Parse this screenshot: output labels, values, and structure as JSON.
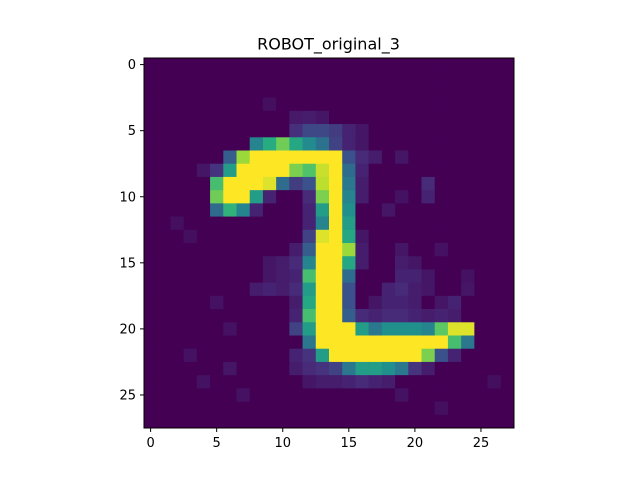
{
  "chart_data": {
    "type": "heatmap",
    "title": "ROBOT_original_3",
    "xlabel": "",
    "ylabel": "",
    "colormap": "viridis",
    "rows": 28,
    "cols": 28,
    "xlim": [
      -0.5,
      27.5
    ],
    "ylim": [
      27.5,
      -0.5
    ],
    "xticks": [
      0,
      5,
      10,
      15,
      20,
      25
    ],
    "yticks": [
      0,
      5,
      10,
      15,
      20,
      25
    ],
    "value_range": [
      0,
      1
    ],
    "cells": [
      {
        "r": 4,
        "c": 11,
        "v": 0.07
      },
      {
        "r": 4,
        "c": 12,
        "v": 0.08
      },
      {
        "r": 4,
        "c": 13,
        "v": 0.06
      },
      {
        "r": 5,
        "c": 11,
        "v": 0.14
      },
      {
        "r": 5,
        "c": 12,
        "v": 0.22
      },
      {
        "r": 5,
        "c": 13,
        "v": 0.22
      },
      {
        "r": 5,
        "c": 14,
        "v": 0.18
      },
      {
        "r": 5,
        "c": 15,
        "v": 0.1
      },
      {
        "r": 5,
        "c": 16,
        "v": 0.06
      },
      {
        "r": 6,
        "c": 8,
        "v": 0.45
      },
      {
        "r": 6,
        "c": 9,
        "v": 0.62
      },
      {
        "r": 6,
        "c": 10,
        "v": 0.78
      },
      {
        "r": 6,
        "c": 11,
        "v": 0.6
      },
      {
        "r": 6,
        "c": 12,
        "v": 0.48
      },
      {
        "r": 6,
        "c": 13,
        "v": 0.38
      },
      {
        "r": 6,
        "c": 14,
        "v": 0.2
      },
      {
        "r": 6,
        "c": 15,
        "v": 0.1
      },
      {
        "r": 6,
        "c": 16,
        "v": 0.06
      },
      {
        "r": 7,
        "c": 6,
        "v": 0.3
      },
      {
        "r": 7,
        "c": 7,
        "v": 0.85
      },
      {
        "r": 7,
        "c": 8,
        "v": 1
      },
      {
        "r": 7,
        "c": 9,
        "v": 1
      },
      {
        "r": 7,
        "c": 10,
        "v": 1
      },
      {
        "r": 7,
        "c": 11,
        "v": 1
      },
      {
        "r": 7,
        "c": 12,
        "v": 1
      },
      {
        "r": 7,
        "c": 13,
        "v": 1
      },
      {
        "r": 7,
        "c": 14,
        "v": 1
      },
      {
        "r": 7,
        "c": 15,
        "v": 0.25
      },
      {
        "r": 7,
        "c": 16,
        "v": 0.12
      },
      {
        "r": 7,
        "c": 17,
        "v": 0.08
      },
      {
        "r": 8,
        "c": 4,
        "v": 0.06
      },
      {
        "r": 8,
        "c": 5,
        "v": 0.15
      },
      {
        "r": 8,
        "c": 6,
        "v": 0.55
      },
      {
        "r": 8,
        "c": 7,
        "v": 1
      },
      {
        "r": 8,
        "c": 8,
        "v": 1
      },
      {
        "r": 8,
        "c": 9,
        "v": 1
      },
      {
        "r": 8,
        "c": 10,
        "v": 1
      },
      {
        "r": 8,
        "c": 11,
        "v": 0.8
      },
      {
        "r": 8,
        "c": 12,
        "v": 0.72
      },
      {
        "r": 8,
        "c": 13,
        "v": 0.92
      },
      {
        "r": 8,
        "c": 14,
        "v": 1
      },
      {
        "r": 8,
        "c": 15,
        "v": 0.35
      },
      {
        "r": 8,
        "c": 16,
        "v": 0.1
      },
      {
        "r": 9,
        "c": 5,
        "v": 0.7
      },
      {
        "r": 9,
        "c": 6,
        "v": 1
      },
      {
        "r": 9,
        "c": 7,
        "v": 1
      },
      {
        "r": 9,
        "c": 8,
        "v": 1
      },
      {
        "r": 9,
        "c": 9,
        "v": 0.95
      },
      {
        "r": 9,
        "c": 10,
        "v": 0.35
      },
      {
        "r": 9,
        "c": 11,
        "v": 0.18
      },
      {
        "r": 9,
        "c": 12,
        "v": 0.25
      },
      {
        "r": 9,
        "c": 13,
        "v": 0.9
      },
      {
        "r": 9,
        "c": 14,
        "v": 1
      },
      {
        "r": 9,
        "c": 15,
        "v": 0.4
      },
      {
        "r": 9,
        "c": 16,
        "v": 0.08
      },
      {
        "r": 9,
        "c": 21,
        "v": 0.12
      },
      {
        "r": 10,
        "c": 5,
        "v": 0.78
      },
      {
        "r": 10,
        "c": 6,
        "v": 1
      },
      {
        "r": 10,
        "c": 7,
        "v": 1
      },
      {
        "r": 10,
        "c": 8,
        "v": 0.55
      },
      {
        "r": 10,
        "c": 9,
        "v": 0.1
      },
      {
        "r": 10,
        "c": 12,
        "v": 0.12
      },
      {
        "r": 10,
        "c": 13,
        "v": 0.8
      },
      {
        "r": 10,
        "c": 14,
        "v": 1
      },
      {
        "r": 10,
        "c": 15,
        "v": 0.45
      },
      {
        "r": 10,
        "c": 16,
        "v": 0.08
      },
      {
        "r": 10,
        "c": 21,
        "v": 0.1
      },
      {
        "r": 11,
        "c": 5,
        "v": 0.35
      },
      {
        "r": 11,
        "c": 6,
        "v": 0.65
      },
      {
        "r": 11,
        "c": 7,
        "v": 0.45
      },
      {
        "r": 11,
        "c": 8,
        "v": 0.1
      },
      {
        "r": 11,
        "c": 12,
        "v": 0.1
      },
      {
        "r": 11,
        "c": 13,
        "v": 0.55
      },
      {
        "r": 11,
        "c": 14,
        "v": 1
      },
      {
        "r": 11,
        "c": 15,
        "v": 0.5
      },
      {
        "r": 11,
        "c": 18,
        "v": 0.06
      },
      {
        "r": 12,
        "c": 12,
        "v": 0.1
      },
      {
        "r": 12,
        "c": 13,
        "v": 0.45
      },
      {
        "r": 12,
        "c": 14,
        "v": 1
      },
      {
        "r": 12,
        "c": 15,
        "v": 0.55
      },
      {
        "r": 13,
        "c": 12,
        "v": 0.2
      },
      {
        "r": 13,
        "c": 13,
        "v": 0.95
      },
      {
        "r": 13,
        "c": 14,
        "v": 1
      },
      {
        "r": 13,
        "c": 15,
        "v": 0.6
      },
      {
        "r": 13,
        "c": 16,
        "v": 0.06
      },
      {
        "r": 14,
        "c": 11,
        "v": 0.08
      },
      {
        "r": 14,
        "c": 12,
        "v": 0.3
      },
      {
        "r": 14,
        "c": 13,
        "v": 1
      },
      {
        "r": 14,
        "c": 14,
        "v": 1
      },
      {
        "r": 14,
        "c": 15,
        "v": 0.85
      },
      {
        "r": 14,
        "c": 16,
        "v": 0.08
      },
      {
        "r": 14,
        "c": 19,
        "v": 0.06
      },
      {
        "r": 15,
        "c": 9,
        "v": 0.06
      },
      {
        "r": 15,
        "c": 10,
        "v": 0.08
      },
      {
        "r": 15,
        "c": 11,
        "v": 0.12
      },
      {
        "r": 15,
        "c": 12,
        "v": 0.45
      },
      {
        "r": 15,
        "c": 13,
        "v": 1
      },
      {
        "r": 15,
        "c": 14,
        "v": 1
      },
      {
        "r": 15,
        "c": 15,
        "v": 0.6
      },
      {
        "r": 15,
        "c": 16,
        "v": 0.08
      },
      {
        "r": 15,
        "c": 19,
        "v": 0.08
      },
      {
        "r": 15,
        "c": 20,
        "v": 0.06
      },
      {
        "r": 16,
        "c": 9,
        "v": 0.06
      },
      {
        "r": 16,
        "c": 10,
        "v": 0.08
      },
      {
        "r": 16,
        "c": 11,
        "v": 0.1
      },
      {
        "r": 16,
        "c": 12,
        "v": 0.7
      },
      {
        "r": 16,
        "c": 13,
        "v": 1
      },
      {
        "r": 16,
        "c": 14,
        "v": 1
      },
      {
        "r": 16,
        "c": 15,
        "v": 0.35
      },
      {
        "r": 16,
        "c": 19,
        "v": 0.1
      },
      {
        "r": 16,
        "c": 20,
        "v": 0.1
      },
      {
        "r": 16,
        "c": 21,
        "v": 0.06
      },
      {
        "r": 17,
        "c": 8,
        "v": 0.08
      },
      {
        "r": 17,
        "c": 9,
        "v": 0.1
      },
      {
        "r": 17,
        "c": 10,
        "v": 0.08
      },
      {
        "r": 17,
        "c": 11,
        "v": 0.12
      },
      {
        "r": 17,
        "c": 12,
        "v": 0.55
      },
      {
        "r": 17,
        "c": 13,
        "v": 1
      },
      {
        "r": 17,
        "c": 14,
        "v": 1
      },
      {
        "r": 17,
        "c": 15,
        "v": 0.25
      },
      {
        "r": 17,
        "c": 18,
        "v": 0.1
      },
      {
        "r": 17,
        "c": 19,
        "v": 0.12
      },
      {
        "r": 17,
        "c": 20,
        "v": 0.08
      },
      {
        "r": 17,
        "c": 21,
        "v": 0.06
      },
      {
        "r": 17,
        "c": 24,
        "v": 0.06
      },
      {
        "r": 18,
        "c": 11,
        "v": 0.08
      },
      {
        "r": 18,
        "c": 12,
        "v": 0.6
      },
      {
        "r": 18,
        "c": 13,
        "v": 1
      },
      {
        "r": 18,
        "c": 14,
        "v": 1
      },
      {
        "r": 18,
        "c": 15,
        "v": 0.25
      },
      {
        "r": 18,
        "c": 17,
        "v": 0.06
      },
      {
        "r": 18,
        "c": 18,
        "v": 0.1
      },
      {
        "r": 18,
        "c": 19,
        "v": 0.1
      },
      {
        "r": 18,
        "c": 20,
        "v": 0.08
      },
      {
        "r": 18,
        "c": 22,
        "v": 0.06
      },
      {
        "r": 18,
        "c": 23,
        "v": 0.1
      },
      {
        "r": 19,
        "c": 11,
        "v": 0.1
      },
      {
        "r": 19,
        "c": 12,
        "v": 0.7
      },
      {
        "r": 19,
        "c": 13,
        "v": 1
      },
      {
        "r": 19,
        "c": 14,
        "v": 1
      },
      {
        "r": 19,
        "c": 15,
        "v": 0.3
      },
      {
        "r": 19,
        "c": 16,
        "v": 0.12
      },
      {
        "r": 19,
        "c": 17,
        "v": 0.1
      },
      {
        "r": 19,
        "c": 18,
        "v": 0.12
      },
      {
        "r": 19,
        "c": 19,
        "v": 0.12
      },
      {
        "r": 19,
        "c": 20,
        "v": 0.1
      },
      {
        "r": 19,
        "c": 21,
        "v": 0.08
      },
      {
        "r": 19,
        "c": 22,
        "v": 0.1
      },
      {
        "r": 19,
        "c": 23,
        "v": 0.08
      },
      {
        "r": 20,
        "c": 11,
        "v": 0.2
      },
      {
        "r": 20,
        "c": 12,
        "v": 0.55
      },
      {
        "r": 20,
        "c": 13,
        "v": 1
      },
      {
        "r": 20,
        "c": 14,
        "v": 1
      },
      {
        "r": 20,
        "c": 15,
        "v": 1
      },
      {
        "r": 20,
        "c": 16,
        "v": 0.55
      },
      {
        "r": 20,
        "c": 17,
        "v": 0.4
      },
      {
        "r": 20,
        "c": 18,
        "v": 0.5
      },
      {
        "r": 20,
        "c": 19,
        "v": 0.5
      },
      {
        "r": 20,
        "c": 20,
        "v": 0.5
      },
      {
        "r": 20,
        "c": 21,
        "v": 0.45
      },
      {
        "r": 20,
        "c": 22,
        "v": 0.75
      },
      {
        "r": 20,
        "c": 23,
        "v": 0.95
      },
      {
        "r": 20,
        "c": 24,
        "v": 0.95
      },
      {
        "r": 21,
        "c": 12,
        "v": 0.4
      },
      {
        "r": 21,
        "c": 13,
        "v": 1
      },
      {
        "r": 21,
        "c": 14,
        "v": 1
      },
      {
        "r": 21,
        "c": 15,
        "v": 1
      },
      {
        "r": 21,
        "c": 16,
        "v": 1
      },
      {
        "r": 21,
        "c": 17,
        "v": 1
      },
      {
        "r": 21,
        "c": 18,
        "v": 1
      },
      {
        "r": 21,
        "c": 19,
        "v": 1
      },
      {
        "r": 21,
        "c": 20,
        "v": 1
      },
      {
        "r": 21,
        "c": 21,
        "v": 1
      },
      {
        "r": 21,
        "c": 22,
        "v": 1
      },
      {
        "r": 21,
        "c": 23,
        "v": 0.7
      },
      {
        "r": 21,
        "c": 24,
        "v": 0.4
      },
      {
        "r": 22,
        "c": 11,
        "v": 0.1
      },
      {
        "r": 22,
        "c": 12,
        "v": 0.15
      },
      {
        "r": 22,
        "c": 13,
        "v": 0.55
      },
      {
        "r": 22,
        "c": 14,
        "v": 1
      },
      {
        "r": 22,
        "c": 15,
        "v": 1
      },
      {
        "r": 22,
        "c": 16,
        "v": 1
      },
      {
        "r": 22,
        "c": 17,
        "v": 1
      },
      {
        "r": 22,
        "c": 18,
        "v": 1
      },
      {
        "r": 22,
        "c": 19,
        "v": 1
      },
      {
        "r": 22,
        "c": 20,
        "v": 1
      },
      {
        "r": 22,
        "c": 21,
        "v": 0.8
      },
      {
        "r": 22,
        "c": 22,
        "v": 0.25
      },
      {
        "r": 22,
        "c": 23,
        "v": 0.1
      },
      {
        "r": 23,
        "c": 11,
        "v": 0.08
      },
      {
        "r": 23,
        "c": 12,
        "v": 0.12
      },
      {
        "r": 23,
        "c": 13,
        "v": 0.15
      },
      {
        "r": 23,
        "c": 14,
        "v": 0.2
      },
      {
        "r": 23,
        "c": 15,
        "v": 0.4
      },
      {
        "r": 23,
        "c": 16,
        "v": 0.55
      },
      {
        "r": 23,
        "c": 17,
        "v": 0.55
      },
      {
        "r": 23,
        "c": 18,
        "v": 0.5
      },
      {
        "r": 23,
        "c": 19,
        "v": 0.4
      },
      {
        "r": 23,
        "c": 20,
        "v": 0.15
      },
      {
        "r": 23,
        "c": 21,
        "v": 0.08
      },
      {
        "r": 24,
        "c": 12,
        "v": 0.06
      },
      {
        "r": 24,
        "c": 13,
        "v": 0.08
      },
      {
        "r": 24,
        "c": 14,
        "v": 0.08
      },
      {
        "r": 24,
        "c": 15,
        "v": 0.1
      },
      {
        "r": 24,
        "c": 16,
        "v": 0.12
      },
      {
        "r": 24,
        "c": 17,
        "v": 0.1
      },
      {
        "r": 24,
        "c": 18,
        "v": 0.08
      },
      {
        "r": 3,
        "c": 9,
        "v": 0.04
      },
      {
        "r": 7,
        "c": 19,
        "v": 0.06
      },
      {
        "r": 12,
        "c": 2,
        "v": 0.04
      },
      {
        "r": 13,
        "c": 3,
        "v": 0.04
      },
      {
        "r": 18,
        "c": 5,
        "v": 0.05
      },
      {
        "r": 20,
        "c": 6,
        "v": 0.05
      },
      {
        "r": 22,
        "c": 3,
        "v": 0.05
      },
      {
        "r": 23,
        "c": 6,
        "v": 0.06
      },
      {
        "r": 24,
        "c": 4,
        "v": 0.05
      },
      {
        "r": 25,
        "c": 7,
        "v": 0.05
      },
      {
        "r": 25,
        "c": 19,
        "v": 0.05
      },
      {
        "r": 26,
        "c": 22,
        "v": 0.04
      },
      {
        "r": 10,
        "c": 19,
        "v": 0.05
      },
      {
        "r": 14,
        "c": 22,
        "v": 0.05
      },
      {
        "r": 16,
        "c": 24,
        "v": 0.05
      },
      {
        "r": 24,
        "c": 26,
        "v": 0.04
      }
    ]
  }
}
